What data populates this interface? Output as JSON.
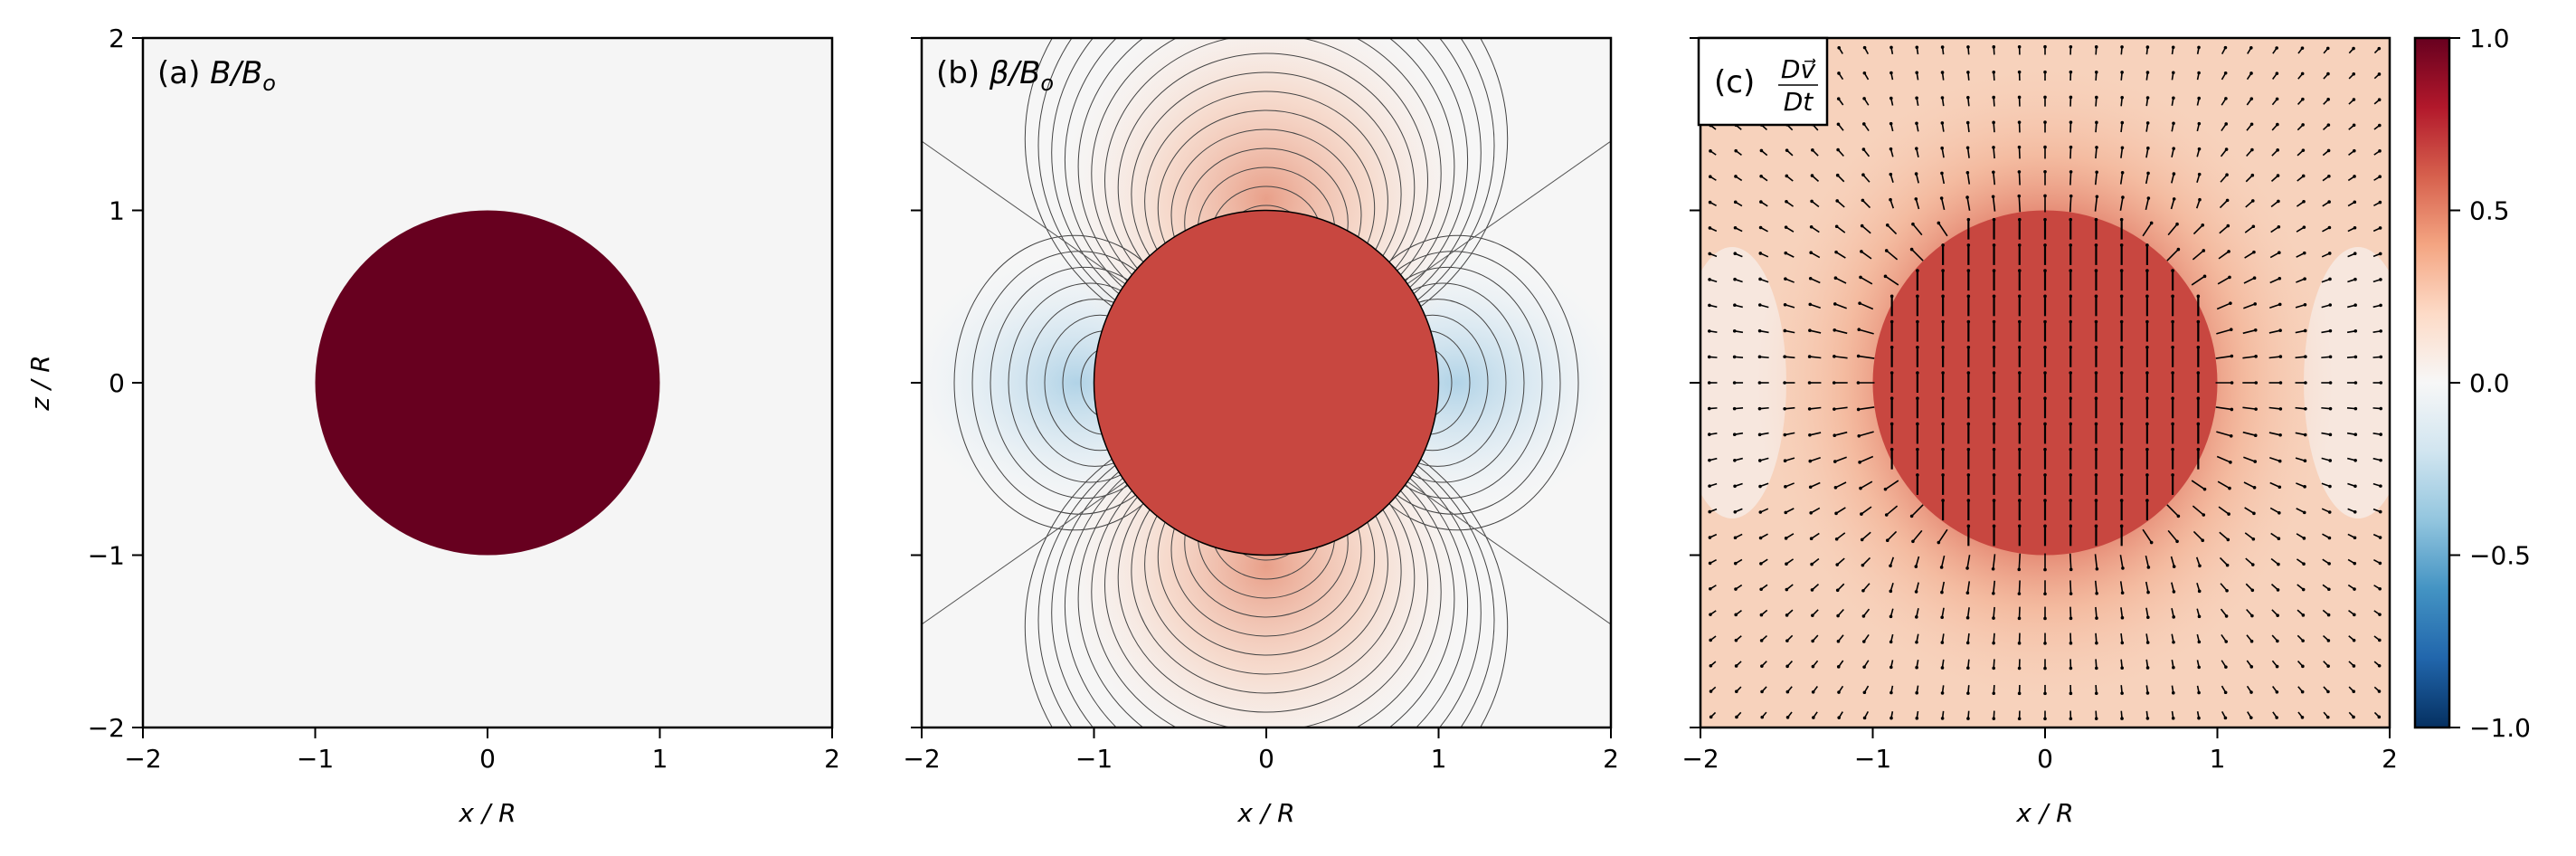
{
  "chart_data": [
    {
      "type": "heatmap",
      "panel_label": "(a) B/Bₒ",
      "xlabel": "x / R",
      "ylabel": "z / R",
      "xlim": [
        -2,
        2
      ],
      "ylim": [
        -2,
        2
      ],
      "x_ticks": [
        -2,
        -1,
        0,
        1,
        2
      ],
      "y_ticks": [
        -2,
        -1,
        0,
        1,
        2
      ],
      "circle_radius": 1,
      "inside_value": 1.0,
      "outside_value": 0.0
    },
    {
      "type": "heatmap",
      "panel_label": "(b) β/Bₒ",
      "xlabel": "x / R",
      "xlim": [
        -2,
        2
      ],
      "ylim": [
        -2,
        2
      ],
      "x_ticks": [
        -2,
        -1,
        0,
        1,
        2
      ],
      "circle_radius": 1,
      "inside_value": 0.8,
      "contours": "dipole-like field lines, positive above/below, negative left/right"
    },
    {
      "type": "heatmap",
      "panel_label": "(c) Dv⃗/Dt",
      "xlabel": "x / R",
      "xlim": [
        -2,
        2
      ],
      "ylim": [
        -2,
        2
      ],
      "x_ticks": [
        -2,
        -1,
        0,
        1,
        2
      ],
      "circle_radius": 1,
      "inside_value": 0.8,
      "arrows": "vector field, vertical inside circle, radial outside"
    }
  ],
  "colorbar": {
    "ticks": [
      "−1.0",
      "−0.5",
      "0.0",
      "0.5",
      "1.0"
    ],
    "tick_values": [
      -1.0,
      -0.5,
      0.0,
      0.5,
      1.0
    ],
    "colormap": "RdBu_r"
  },
  "labels": {
    "a_prefix": "(a) ",
    "a_var": "B/B",
    "a_sub": "o",
    "b_prefix": "(b) ",
    "b_var": "β/B",
    "b_sub": "o",
    "c_prefix": "(c) ",
    "c_num": "Dv⃗",
    "c_den": "Dt",
    "xlabel": "x / R",
    "ylabel": "z / R"
  }
}
